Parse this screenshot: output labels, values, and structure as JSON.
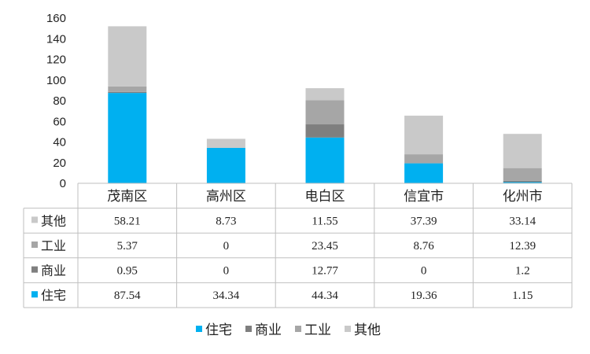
{
  "chart_data": {
    "type": "bar",
    "stacked": true,
    "title": "",
    "xlabel": "",
    "ylabel": "",
    "ylim": [
      0,
      160
    ],
    "yticks": [
      0,
      20,
      40,
      60,
      80,
      100,
      120,
      140,
      160
    ],
    "grid": false,
    "legend_position": "bottom",
    "categories": [
      "茂南区",
      "高州区",
      "电白区",
      "信宜市",
      "化州市"
    ],
    "series": [
      {
        "name": "住宅",
        "color": "#00b0f0",
        "values": [
          87.54,
          34.34,
          44.34,
          19.36,
          1.15
        ]
      },
      {
        "name": "商业",
        "color": "#7f7f7f",
        "values": [
          0.95,
          0,
          12.77,
          0,
          1.2
        ]
      },
      {
        "name": "工业",
        "color": "#a6a6a6",
        "values": [
          5.37,
          0,
          23.45,
          8.76,
          12.39
        ]
      },
      {
        "name": "其他",
        "color": "#c9c9c9",
        "values": [
          58.21,
          8.73,
          11.55,
          37.39,
          33.14
        ]
      }
    ],
    "table_rows": [
      {
        "name": "其他",
        "color": "#c9c9c9",
        "cells": [
          "58.21",
          "8.73",
          "11.55",
          "37.39",
          "33.14"
        ]
      },
      {
        "name": "工业",
        "color": "#a6a6a6",
        "cells": [
          "5.37",
          "0",
          "23.45",
          "8.76",
          "12.39"
        ]
      },
      {
        "name": "商业",
        "color": "#7f7f7f",
        "cells": [
          "0.95",
          "0",
          "12.77",
          "0",
          "1.2"
        ]
      },
      {
        "name": "住宅",
        "color": "#00b0f0",
        "cells": [
          "87.54",
          "34.34",
          "44.34",
          "19.36",
          "1.15"
        ]
      }
    ]
  }
}
